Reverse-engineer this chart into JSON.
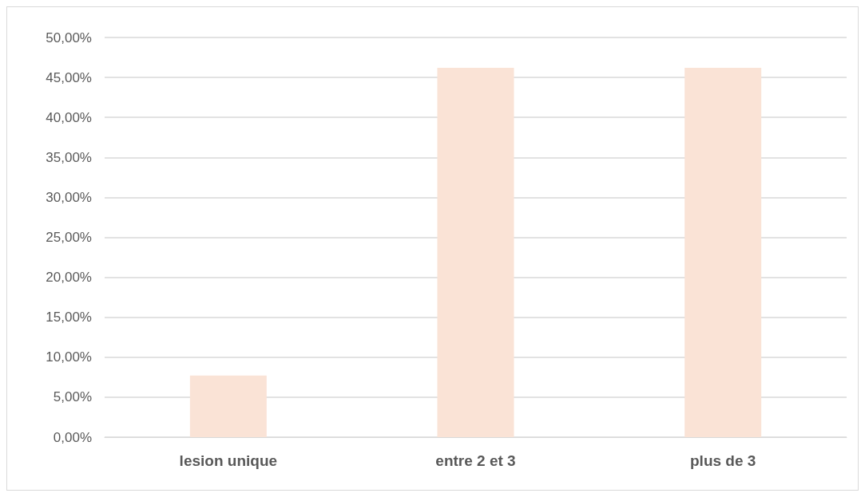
{
  "chart_data": {
    "type": "bar",
    "categories": [
      "lesion unique",
      "entre 2 et 3",
      "plus de 3"
    ],
    "values": [
      7.7,
      46.2,
      46.2
    ],
    "color": "#fae3d6",
    "ylim": [
      0,
      50
    ],
    "yticks": [
      {
        "value": 0,
        "label": "0,00%"
      },
      {
        "value": 5,
        "label": "5,00%"
      },
      {
        "value": 10,
        "label": "10,00%"
      },
      {
        "value": 15,
        "label": "15,00%"
      },
      {
        "value": 20,
        "label": "20,00%"
      },
      {
        "value": 25,
        "label": "25,00%"
      },
      {
        "value": 30,
        "label": "30,00%"
      },
      {
        "value": 35,
        "label": "35,00%"
      },
      {
        "value": 40,
        "label": "40,00%"
      },
      {
        "value": 45,
        "label": "45,00%"
      },
      {
        "value": 50,
        "label": "50,00%"
      }
    ],
    "grid": true
  }
}
